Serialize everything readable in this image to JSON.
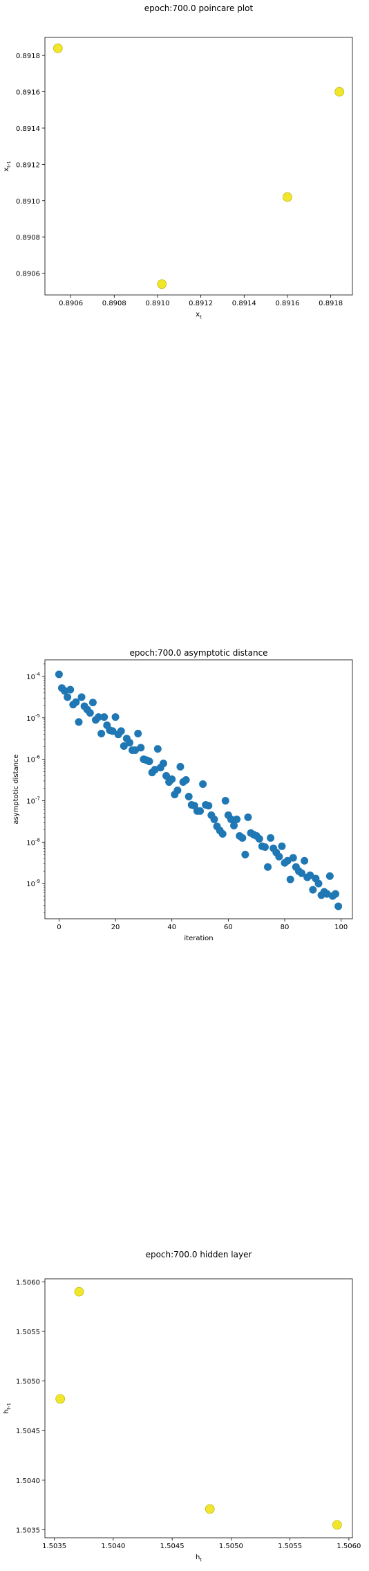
{
  "chart_data": [
    {
      "type": "scatter",
      "title": "epoch:700.0 poincare plot",
      "xlabel": "x_t",
      "ylabel": "x_{t-1}",
      "xlim": [
        0.89048,
        0.8919
      ],
      "ylim": [
        0.89048,
        0.8919
      ],
      "xticks": [
        "0.8906",
        "0.8908",
        "0.8910",
        "0.8912",
        "0.8914",
        "0.8916",
        "0.8918"
      ],
      "xtick_values": [
        0.8906,
        0.8908,
        0.891,
        0.8912,
        0.8914,
        0.8916,
        0.8918
      ],
      "yticks": [
        "0.8906",
        "0.8908",
        "0.8910",
        "0.8912",
        "0.8914",
        "0.8916",
        "0.8918"
      ],
      "ytick_values": [
        0.8906,
        0.8908,
        0.891,
        0.8912,
        0.8914,
        0.8916,
        0.8918
      ],
      "points": [
        {
          "x": 0.89054,
          "y": 0.89184
        },
        {
          "x": 0.89184,
          "y": 0.8916
        },
        {
          "x": 0.8916,
          "y": 0.89102
        },
        {
          "x": 0.89102,
          "y": 0.89054
        }
      ],
      "marker_color": "#f0e62a",
      "marker_edge": "#b5a800"
    },
    {
      "type": "scatter",
      "title": "epoch:700.0 asymptotic distance",
      "xlabel": "iteration",
      "ylabel": "asymptotic distance",
      "xlim": [
        -5,
        104
      ],
      "ylim_log10": [
        -9.85,
        -3.6
      ],
      "yscale": "log",
      "xticks": [
        "0",
        "20",
        "40",
        "60",
        "80",
        "100"
      ],
      "xtick_values": [
        0,
        20,
        40,
        60,
        80,
        100
      ],
      "yticks": [
        "10^-9",
        "10^-8",
        "10^-7",
        "10^-6",
        "10^-5",
        "10^-4"
      ],
      "ytick_exponents": [
        -9,
        -8,
        -7,
        -6,
        -5,
        -4
      ],
      "x": [
        0,
        1,
        2,
        3,
        4,
        5,
        6,
        7,
        8,
        9,
        10,
        11,
        12,
        13,
        14,
        15,
        16,
        17,
        18,
        19,
        20,
        21,
        22,
        23,
        24,
        25,
        26,
        27,
        28,
        29,
        30,
        31,
        32,
        33,
        34,
        35,
        36,
        37,
        38,
        39,
        40,
        41,
        42,
        43,
        44,
        45,
        46,
        47,
        48,
        49,
        50,
        51,
        52,
        53,
        54,
        55,
        56,
        57,
        58,
        59,
        60,
        61,
        62,
        63,
        64,
        65,
        66,
        67,
        68,
        69,
        70,
        71,
        72,
        73,
        74,
        75,
        76,
        77,
        78,
        79,
        80,
        81,
        82,
        83,
        84,
        85,
        86,
        87,
        88,
        89,
        90,
        91,
        92,
        93,
        94,
        95,
        96,
        97,
        98,
        99
      ],
      "y_log10": [
        -3.95,
        -4.28,
        -4.35,
        -4.5,
        -4.32,
        -4.68,
        -4.62,
        -5.1,
        -4.5,
        -4.72,
        -4.8,
        -4.88,
        -4.63,
        -5.05,
        -4.98,
        -5.38,
        -4.98,
        -5.18,
        -5.3,
        -5.32,
        -4.98,
        -5.4,
        -5.32,
        -5.68,
        -5.5,
        -5.6,
        -5.78,
        -5.78,
        -5.38,
        -5.72,
        -6.0,
        -6.02,
        -6.05,
        -6.32,
        -6.25,
        -5.75,
        -6.2,
        -6.1,
        -6.4,
        -6.55,
        -6.48,
        -6.85,
        -6.75,
        -6.18,
        -6.55,
        -6.5,
        -6.9,
        -7.1,
        -7.12,
        -7.25,
        -7.25,
        -6.6,
        -7.1,
        -7.12,
        -7.35,
        -7.45,
        -7.62,
        -7.72,
        -7.8,
        -7.0,
        -7.35,
        -7.45,
        -7.6,
        -7.45,
        -7.85,
        -7.9,
        -8.3,
        -7.4,
        -7.78,
        -7.82,
        -7.85,
        -7.92,
        -8.1,
        -8.12,
        -8.6,
        -7.9,
        -8.15,
        -8.25,
        -8.35,
        -8.1,
        -8.5,
        -8.45,
        -8.9,
        -8.38,
        -8.6,
        -8.7,
        -8.75,
        -8.45,
        -8.85,
        -8.8,
        -9.15,
        -8.88,
        -9.0,
        -9.28,
        -9.2,
        -9.25,
        -8.82,
        -9.3,
        -9.25,
        -9.55
      ],
      "marker_color": "#1f77b4"
    },
    {
      "type": "scatter",
      "title": "epoch:700.0 hidden layer",
      "xlabel": "h_t",
      "ylabel": "h_{t-1}",
      "xlim": [
        1.50342,
        1.50603
      ],
      "ylim": [
        1.50342,
        1.50603
      ],
      "xticks": [
        "1.5035",
        "1.5040",
        "1.5045",
        "1.5050",
        "1.5055",
        "1.5060"
      ],
      "xtick_values": [
        1.5035,
        1.504,
        1.5045,
        1.505,
        1.5055,
        1.506
      ],
      "yticks": [
        "1.5035",
        "1.5040",
        "1.5045",
        "1.5050",
        "1.5055",
        "1.5060"
      ],
      "ytick_values": [
        1.5035,
        1.504,
        1.5045,
        1.505,
        1.5055,
        1.506
      ],
      "points": [
        {
          "x": 1.50371,
          "y": 1.5059
        },
        {
          "x": 1.50355,
          "y": 1.50482
        },
        {
          "x": 1.50482,
          "y": 1.50371
        },
        {
          "x": 1.5059,
          "y": 1.50355
        }
      ],
      "marker_color": "#f0e62a",
      "marker_edge": "#b5a800"
    }
  ]
}
